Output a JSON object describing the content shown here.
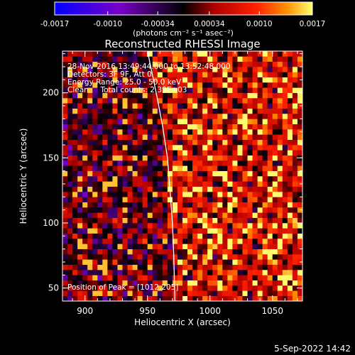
{
  "chart_data": {
    "type": "heatmap",
    "title": "Reconstructed RHESSI Image",
    "xlabel": "Heliocentric X (arcsec)",
    "ylabel": "Heliocentric Y (arcsec)",
    "xlim": [
      882,
      1074
    ],
    "ylim": [
      40,
      232
    ],
    "x_ticks": [
      900,
      950,
      1000,
      1050
    ],
    "y_ticks": [
      50,
      100,
      150,
      200
    ],
    "colorbar": {
      "min": -0.0017,
      "max": 0.0017,
      "tick_values": [
        -0.0017,
        -0.001,
        -0.00034,
        0.00034,
        0.001,
        0.0017
      ],
      "tick_labels": [
        "-0.0017",
        "-0.0010",
        "-0.00034",
        "0.00034",
        "0.0010",
        "0.0017"
      ],
      "unit_label": "(photons cm⁻² s⁻¹ asec⁻²)"
    },
    "grid": false,
    "pixel_size_arcsec": 4,
    "peak": [
      1012,
      205
    ],
    "annotations": {
      "time_range": "28-Nov-2016 13:49:44.000 to 13:52:48.000",
      "detectors": "Detectors: 3F 9F, Att 0",
      "energy": "Energy Range: 25.0 - 50.0 keV",
      "algorithm": "Clean     Total counts: 2.39E+03",
      "peak_text": "Position of Peak = [1012,205]"
    },
    "limb_points": [
      [
        950,
        232
      ],
      [
        957,
        200
      ],
      [
        962,
        175
      ],
      [
        966,
        150
      ],
      [
        968,
        125
      ],
      [
        970,
        100
      ],
      [
        971,
        75
      ],
      [
        972,
        40
      ]
    ]
  },
  "footer": {
    "date": "5-Sep-2022 14:42"
  }
}
